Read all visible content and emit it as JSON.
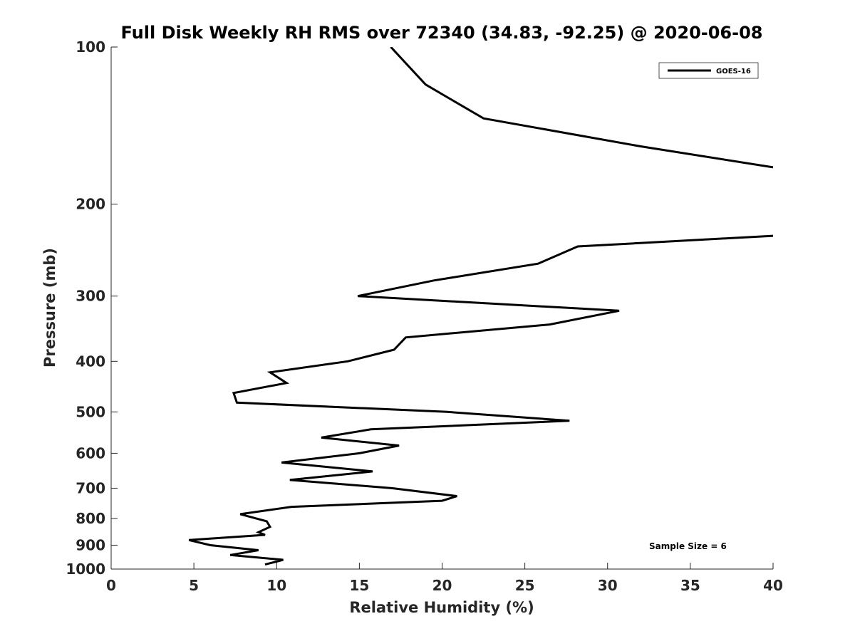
{
  "chart_data": {
    "type": "line",
    "title": "Full Disk Weekly RH RMS over 72340 (34.83, -92.25) @ 2020-06-08",
    "xlabel": "Relative Humidity (%)",
    "ylabel": "Pressure (mb)",
    "xlim": [
      0,
      40
    ],
    "ylim": [
      1000,
      100
    ],
    "yscale": "log",
    "y_reversed": true,
    "grid": false,
    "legend_position": "top-right",
    "x_ticks": [
      "0",
      "5",
      "10",
      "15",
      "20",
      "25",
      "30",
      "35",
      "40"
    ],
    "y_ticks": [
      {
        "value": 100,
        "label": "100"
      },
      {
        "value": 200,
        "label": "200"
      },
      {
        "value": 300,
        "label": "300"
      },
      {
        "value": 400,
        "label": "400"
      },
      {
        "value": 500,
        "label": "500"
      },
      {
        "value": 600,
        "label": "600"
      },
      {
        "value": 700,
        "label": "700"
      },
      {
        "value": 800,
        "label": "800"
      },
      {
        "value": 900,
        "label": "900"
      },
      {
        "value": 1000,
        "label": "1000"
      }
    ],
    "annotation": "Sample Size = 6",
    "series_color": "#000000",
    "series": [
      {
        "name": "GOES-16",
        "segments": [
          [
            {
              "x": 16.9,
              "y": 100
            },
            {
              "x": 19.0,
              "y": 118
            },
            {
              "x": 22.5,
              "y": 137
            },
            {
              "x": 32.0,
              "y": 155
            },
            {
              "x": 40.0,
              "y": 170
            }
          ],
          [
            {
              "x": 40.0,
              "y": 230
            },
            {
              "x": 28.2,
              "y": 241
            },
            {
              "x": 25.8,
              "y": 260
            },
            {
              "x": 19.5,
              "y": 280
            },
            {
              "x": 14.9,
              "y": 300
            },
            {
              "x": 30.7,
              "y": 320
            },
            {
              "x": 26.5,
              "y": 340
            },
            {
              "x": 17.8,
              "y": 360
            },
            {
              "x": 17.1,
              "y": 380
            },
            {
              "x": 14.3,
              "y": 400
            },
            {
              "x": 9.6,
              "y": 420
            },
            {
              "x": 10.6,
              "y": 440
            },
            {
              "x": 7.4,
              "y": 460
            },
            {
              "x": 7.6,
              "y": 480
            },
            {
              "x": 20.3,
              "y": 500
            },
            {
              "x": 27.7,
              "y": 520
            },
            {
              "x": 15.7,
              "y": 540
            },
            {
              "x": 12.7,
              "y": 560
            },
            {
              "x": 17.4,
              "y": 580
            },
            {
              "x": 15.0,
              "y": 600
            },
            {
              "x": 10.3,
              "y": 625
            },
            {
              "x": 15.8,
              "y": 650
            },
            {
              "x": 10.8,
              "y": 675
            },
            {
              "x": 17.0,
              "y": 700
            },
            {
              "x": 20.9,
              "y": 725
            },
            {
              "x": 20.0,
              "y": 740
            },
            {
              "x": 10.9,
              "y": 760
            },
            {
              "x": 7.8,
              "y": 785
            },
            {
              "x": 9.4,
              "y": 810
            },
            {
              "x": 9.6,
              "y": 830
            },
            {
              "x": 8.9,
              "y": 850
            },
            {
              "x": 9.3,
              "y": 860
            },
            {
              "x": 4.7,
              "y": 880
            },
            {
              "x": 6.0,
              "y": 900
            },
            {
              "x": 8.9,
              "y": 920
            },
            {
              "x": 7.2,
              "y": 940
            },
            {
              "x": 10.4,
              "y": 960
            },
            {
              "x": 9.3,
              "y": 980
            }
          ]
        ]
      }
    ]
  }
}
